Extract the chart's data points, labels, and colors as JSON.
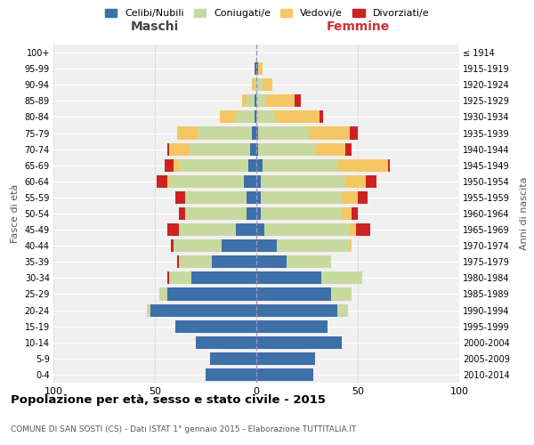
{
  "age_groups_bottom_to_top": [
    "0-4",
    "5-9",
    "10-14",
    "15-19",
    "20-24",
    "25-29",
    "30-34",
    "35-39",
    "40-44",
    "45-49",
    "50-54",
    "55-59",
    "60-64",
    "65-69",
    "70-74",
    "75-79",
    "80-84",
    "85-89",
    "90-94",
    "95-99",
    "100+"
  ],
  "birth_years_bottom_to_top": [
    "2010-2014",
    "2005-2009",
    "2000-2004",
    "1995-1999",
    "1990-1994",
    "1985-1989",
    "1980-1984",
    "1975-1979",
    "1970-1974",
    "1965-1969",
    "1960-1964",
    "1955-1959",
    "1950-1954",
    "1945-1949",
    "1940-1944",
    "1935-1939",
    "1930-1934",
    "1925-1929",
    "1920-1924",
    "1915-1919",
    "≤ 1914"
  ],
  "maschi": {
    "celibi": [
      25,
      23,
      30,
      40,
      52,
      44,
      32,
      22,
      17,
      10,
      5,
      5,
      6,
      4,
      3,
      2,
      1,
      1,
      0,
      1,
      0
    ],
    "coniugati": [
      0,
      0,
      0,
      0,
      2,
      4,
      11,
      16,
      24,
      28,
      30,
      30,
      37,
      34,
      30,
      27,
      9,
      4,
      1,
      0,
      0
    ],
    "vedovi": [
      0,
      0,
      0,
      0,
      0,
      0,
      0,
      0,
      0,
      0,
      0,
      0,
      1,
      3,
      10,
      10,
      8,
      2,
      1,
      0,
      0
    ],
    "divorziati": [
      0,
      0,
      0,
      0,
      0,
      0,
      1,
      1,
      1,
      6,
      3,
      5,
      5,
      4,
      1,
      0,
      0,
      0,
      0,
      0,
      0
    ]
  },
  "femmine": {
    "nubili": [
      28,
      29,
      42,
      35,
      40,
      37,
      32,
      15,
      10,
      4,
      2,
      2,
      2,
      3,
      1,
      1,
      0,
      0,
      0,
      1,
      0
    ],
    "coniugate": [
      0,
      0,
      0,
      0,
      5,
      10,
      20,
      22,
      36,
      42,
      40,
      40,
      42,
      37,
      28,
      25,
      9,
      5,
      3,
      0,
      0
    ],
    "vedove": [
      0,
      0,
      0,
      0,
      0,
      0,
      0,
      0,
      1,
      3,
      5,
      8,
      10,
      25,
      15,
      20,
      22,
      14,
      5,
      2,
      0
    ],
    "divorziate": [
      0,
      0,
      0,
      0,
      0,
      0,
      0,
      0,
      0,
      7,
      3,
      5,
      5,
      1,
      3,
      4,
      2,
      3,
      0,
      0,
      0
    ]
  },
  "colors": {
    "celibi": "#3d6fa8",
    "coniugati": "#c8d9a0",
    "vedovi": "#f5c764",
    "divorziati": "#cc2222"
  },
  "xlim": 100,
  "title": "Popolazione per età, sesso e stato civile - 2015",
  "subtitle": "COMUNE DI SAN SOSTI (CS) - Dati ISTAT 1° gennaio 2015 - Elaborazione TUTTITALIA.IT",
  "ylabel_left": "Fasce di età",
  "ylabel_right": "Anni di nascita",
  "xlabel_left": "Maschi",
  "xlabel_right": "Femmine",
  "bg_color": "#f0f0f0",
  "legend_labels": [
    "Celibi/Nubili",
    "Coniugati/e",
    "Vedovi/e",
    "Divorziati/e"
  ]
}
